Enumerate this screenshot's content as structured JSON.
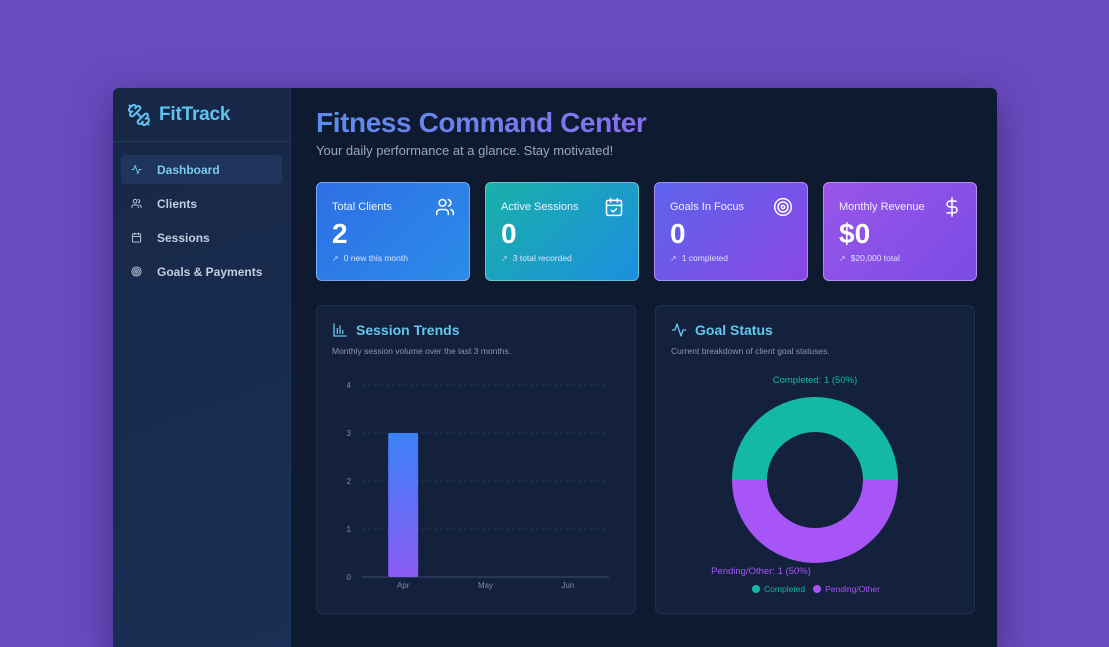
{
  "app": {
    "brand": "FitTrack",
    "brand_icon": "dumbbell-icon"
  },
  "sidebar": {
    "items": [
      {
        "label": "Dashboard",
        "icon": "activity-icon",
        "active": true
      },
      {
        "label": "Clients",
        "icon": "users-icon",
        "active": false
      },
      {
        "label": "Sessions",
        "icon": "calendar-icon",
        "active": false
      },
      {
        "label": "Goals & Payments",
        "icon": "target-icon",
        "active": false
      }
    ]
  },
  "header": {
    "title": "Fitness Command Center",
    "subtitle": "Your daily performance at a glance. Stay motivated!"
  },
  "cards": [
    {
      "title": "Total Clients",
      "value": "2",
      "sub": "0 new this month",
      "icon": "users-icon"
    },
    {
      "title": "Active Sessions",
      "value": "0",
      "sub": "3 total recorded",
      "icon": "calendar-check-icon"
    },
    {
      "title": "Goals In Focus",
      "value": "0",
      "sub": "1 completed",
      "icon": "target-icon"
    },
    {
      "title": "Monthly Revenue",
      "value": "$0",
      "sub": "$20,000 total",
      "icon": "dollar-icon"
    }
  ],
  "panels": {
    "sessions": {
      "title": "Session Trends",
      "desc": "Monthly session volume over the last 3 months.",
      "icon": "bar-chart-icon"
    },
    "goals": {
      "title": "Goal Status",
      "desc": "Current breakdown of client goal statuses.",
      "icon": "pulse-icon"
    }
  },
  "colors": {
    "completed": "#14b8a6",
    "pending": "#a855f7",
    "bar_top": "#3b82f6",
    "bar_bottom": "#8b5cf6"
  },
  "chart_data": [
    {
      "type": "bar",
      "title": "Session Trends",
      "categories": [
        "Apr",
        "May",
        "Jun"
      ],
      "values": [
        3,
        0,
        0
      ],
      "ylim": [
        0,
        4
      ],
      "yticks": [
        "0",
        "1",
        "2",
        "3",
        "4"
      ],
      "xlabel": "",
      "ylabel": ""
    },
    {
      "type": "pie",
      "title": "Goal Status",
      "labels": [
        "Completed",
        "Pending/Other"
      ],
      "values": [
        1,
        1
      ],
      "percents": [
        50,
        50
      ],
      "data_labels": [
        "Completed: 1 (50%)",
        "Pending/Other: 1 (50%)"
      ],
      "legend": [
        "Completed",
        "Pending/Other"
      ]
    }
  ]
}
